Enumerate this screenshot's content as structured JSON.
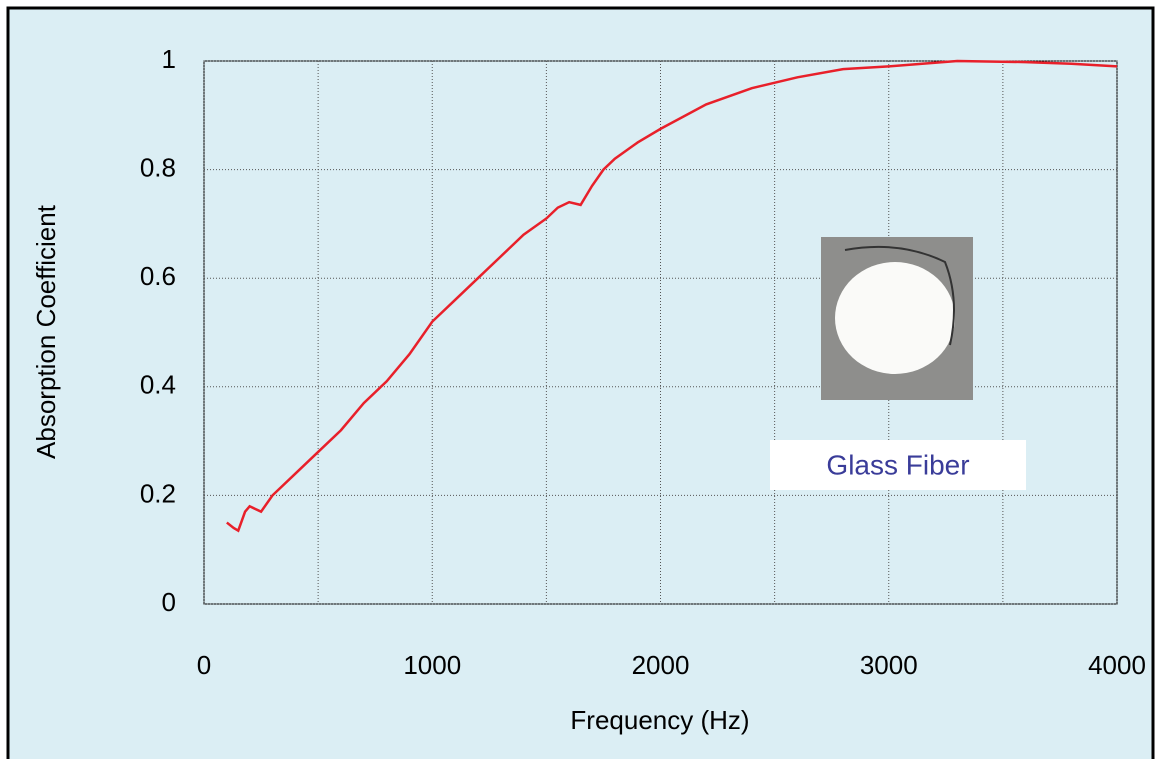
{
  "chart_data": {
    "type": "line",
    "x_label": "Frequency (Hz)",
    "y_label": "Absorption Coefficient",
    "annotation": "Glass Fiber",
    "xlim": [
      0,
      4000
    ],
    "xticks": [
      0,
      1000,
      2000,
      3000,
      4000
    ],
    "ylim": [
      0,
      1
    ],
    "yticks": [
      0,
      0.2,
      0.4,
      0.6,
      0.8,
      1
    ],
    "grid": true,
    "series": [
      {
        "name": "Glass Fiber",
        "color": "#e8202a",
        "x": [
          100,
          130,
          150,
          180,
          200,
          250,
          300,
          400,
          500,
          600,
          700,
          800,
          900,
          1000,
          1100,
          1200,
          1300,
          1400,
          1500,
          1550,
          1600,
          1650,
          1700,
          1750,
          1800,
          1900,
          2000,
          2200,
          2400,
          2600,
          2800,
          3000,
          3300,
          3600,
          3800,
          4000
        ],
        "values": [
          0.15,
          0.14,
          0.135,
          0.17,
          0.18,
          0.17,
          0.2,
          0.24,
          0.28,
          0.32,
          0.37,
          0.41,
          0.46,
          0.52,
          0.56,
          0.6,
          0.64,
          0.68,
          0.71,
          0.73,
          0.74,
          0.735,
          0.77,
          0.8,
          0.82,
          0.85,
          0.875,
          0.92,
          0.95,
          0.97,
          0.985,
          0.99,
          1.0,
          0.998,
          0.995,
          0.99
        ]
      }
    ]
  }
}
